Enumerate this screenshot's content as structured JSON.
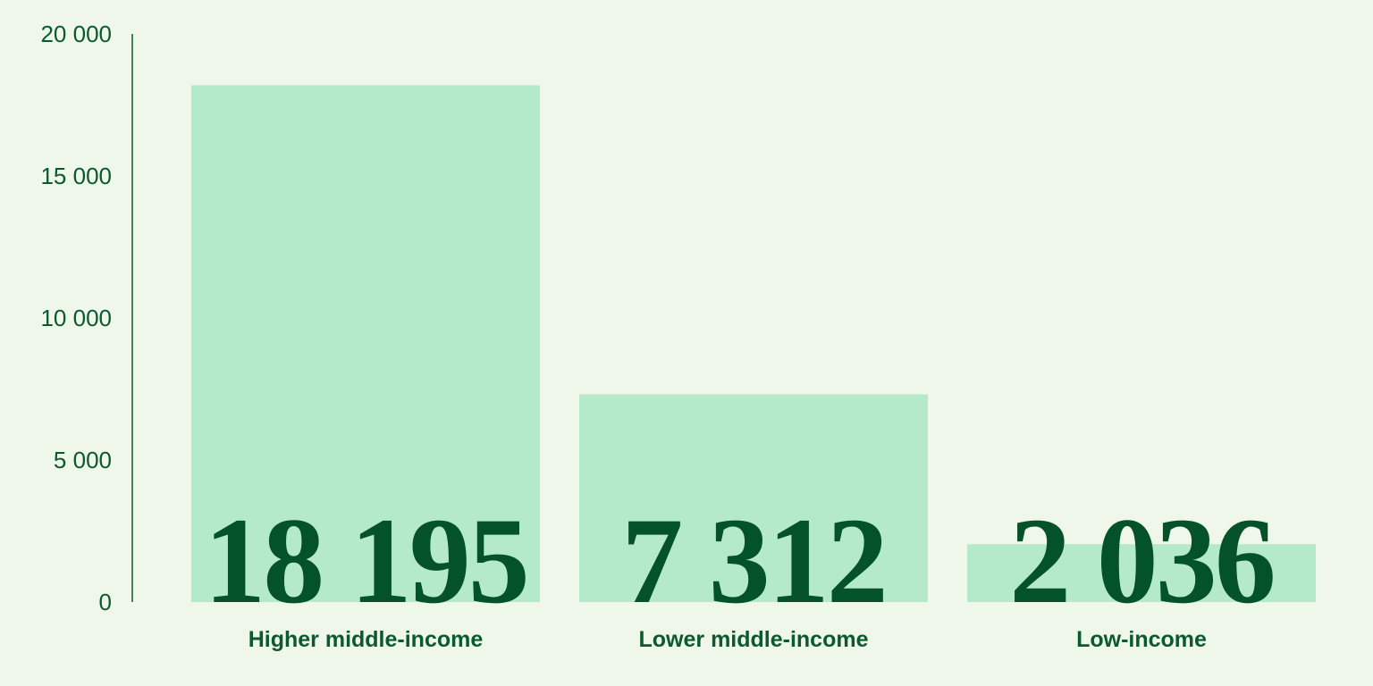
{
  "chart_data": {
    "type": "bar",
    "categories": [
      "Higher middle-income",
      "Lower middle-income",
      "Low-income"
    ],
    "values": [
      18195,
      7312,
      2036
    ],
    "value_labels": [
      "18 195",
      "7 312",
      "2 036"
    ],
    "yticks": [
      {
        "value": 0,
        "label": "0"
      },
      {
        "value": 5000,
        "label": "5 000"
      },
      {
        "value": 10000,
        "label": "10 000"
      },
      {
        "value": 15000,
        "label": "15 000"
      },
      {
        "value": 20000,
        "label": "20 000"
      }
    ],
    "ylim": [
      0,
      20000
    ],
    "title": "",
    "xlabel": "",
    "ylabel": "",
    "grid": false,
    "colors": {
      "background": "#eff6ea",
      "bar": "#b4eaca",
      "axis": "#0b5a2e",
      "text": "#0b5a2e",
      "value_text": "#03522a"
    }
  }
}
